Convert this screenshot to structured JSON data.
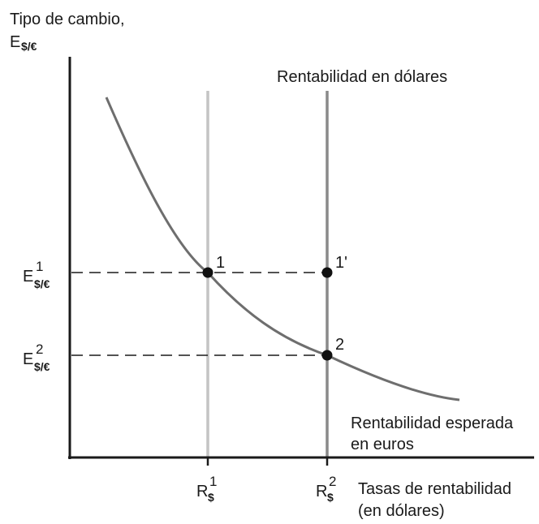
{
  "y_axis_title": {
    "line1": "Tipo de cambio,",
    "symbol": "E",
    "subscript": "$/€"
  },
  "x_axis_title": {
    "line1": "Tasas de rentabilidad",
    "line2": "(en dólares)"
  },
  "dollar_return_label": "Rentabilidad en dólares",
  "euro_return_label": {
    "line1": "Rentabilidad esperada",
    "line2": "en euros"
  },
  "y_ticks": [
    {
      "symbol": "E",
      "superscript": "1",
      "subscript": "$/€"
    },
    {
      "symbol": "E",
      "superscript": "2",
      "subscript": "$/€"
    }
  ],
  "x_ticks": [
    {
      "symbol": "R",
      "superscript": "1",
      "subscript": "$"
    },
    {
      "symbol": "R",
      "superscript": "2",
      "subscript": "$"
    }
  ],
  "points": [
    {
      "label": "1"
    },
    {
      "label": "1'"
    },
    {
      "label": "2"
    }
  ],
  "colors": {
    "axis": "#1a1a1a",
    "curve": "#6e6e6e",
    "line_r1": "#c4c4c4",
    "line_r2": "#8a8a8a",
    "dashed": "#1a1a1a",
    "point": "#111111"
  }
}
